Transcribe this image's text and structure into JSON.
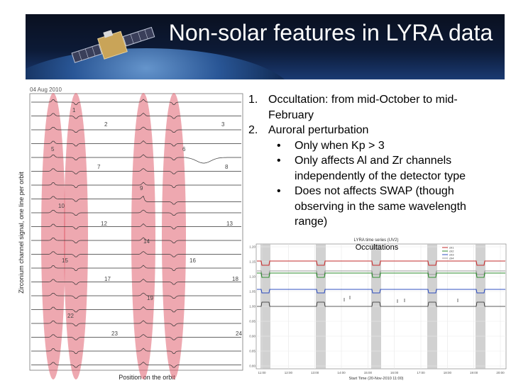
{
  "slide": {
    "title": "Non-solar features in LYRA data",
    "items": [
      {
        "num": "1.",
        "text": "Occultation: from mid-October to mid-February"
      },
      {
        "num": "2.",
        "text": "Auroral perturbation"
      }
    ],
    "subitems": [
      {
        "bullet": "•",
        "text": "Only when Kp > 3"
      },
      {
        "bullet": "•",
        "text": "Only affects Al and Zr channels independently of the detector type"
      },
      {
        "bullet": "•",
        "text": "Does not affects SWAP (though observing in the same wavelength range)"
      }
    ]
  },
  "left_figure": {
    "date": "04 Aug 2010",
    "ylabel": "Zirconium channel signal, one line per orbit",
    "xlabel": "Position on the orbit",
    "curve_labels": [
      "1",
      "2",
      "3",
      "5",
      "6",
      "7",
      "8",
      "9",
      "10",
      "12",
      "13",
      "14",
      "15",
      "16",
      "17",
      "18",
      "19",
      "22",
      "23",
      "24"
    ],
    "colors": {
      "ellipse": "#e06070",
      "curve": "#333333"
    }
  },
  "right_figure": {
    "title": "LYRA time series (UV2)",
    "annotation": "Occultations",
    "x_ticks": [
      "11:00",
      "12:00",
      "13:00",
      "14:00",
      "15:00",
      "16:00",
      "17:00",
      "18:00",
      "19:00",
      "20:00"
    ],
    "y_ticks": [
      "1.20",
      "1.15",
      "1.10",
      "1.05",
      "1.00",
      "0.95",
      "0.90",
      "0.85",
      "0.80"
    ],
    "xlabel": "Start Time (20-Nov-2010 11:00)",
    "legend": [
      "ch1",
      "ch2",
      "ch3",
      "ch4"
    ],
    "colors": {
      "red": "#c83030",
      "green": "#2e8b2e",
      "blue": "#3050c0",
      "grey": "#9a9a9a",
      "band": "#bdbdbd"
    }
  }
}
